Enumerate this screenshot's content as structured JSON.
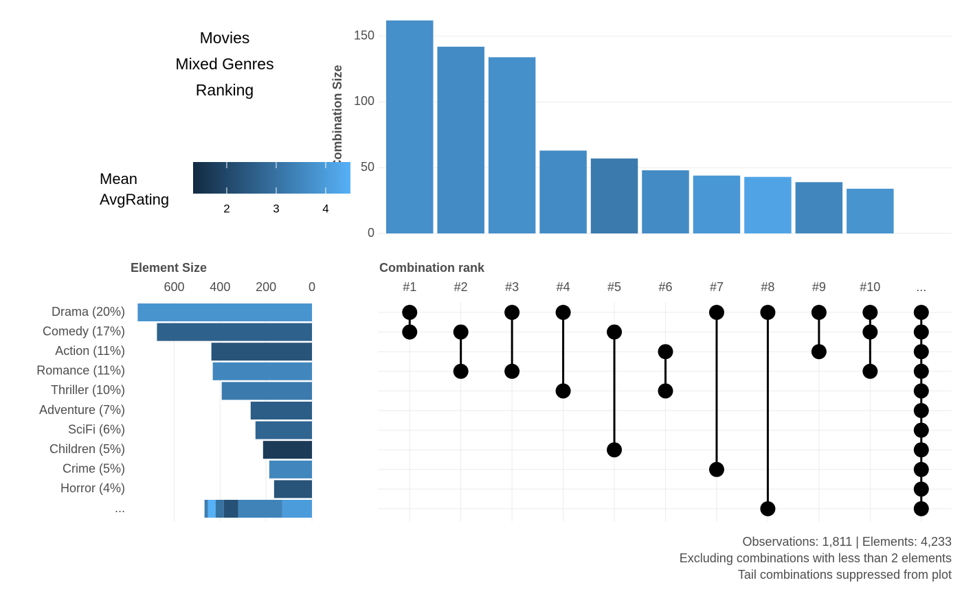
{
  "title_lines": [
    "Movies",
    "Mixed Genres",
    "Ranking"
  ],
  "legend": {
    "title_lines": [
      "Mean",
      "AvgRating"
    ],
    "lim": [
      1.32,
      4.5
    ],
    "ticks": [
      2,
      3,
      4
    ],
    "colors": [
      "#132B43",
      "#56B1F7"
    ]
  },
  "combination_chart": {
    "type": "bar",
    "y_label": "Combination Size",
    "ylim": [
      0,
      165
    ],
    "yticks": [
      0,
      50,
      100,
      150
    ],
    "values": [
      162,
      142,
      134,
      63,
      57,
      48,
      44,
      43,
      39,
      34
    ],
    "mean_rating": [
      3.7,
      3.6,
      3.7,
      3.6,
      3.2,
      3.6,
      3.9,
      4.2,
      3.5,
      3.8
    ]
  },
  "element_chart": {
    "type": "bar",
    "x_label": "Element Size",
    "xlim": [
      0,
      790
    ],
    "xticks": [
      600,
      400,
      200,
      0
    ],
    "categories": [
      "Drama (20%)",
      "Comedy (17%)",
      "Action (11%)",
      "Romance (11%)",
      "Thriller (10%)",
      "Adventure (7%)",
      "SciFi (6%)",
      "Children (5%)",
      "Crime (5%)",
      "Horror (4%)",
      "..."
    ],
    "values": [
      759,
      675,
      438,
      432,
      393,
      267,
      246,
      213,
      186,
      165,
      null
    ],
    "mean_rating": [
      3.8,
      2.6,
      2.3,
      3.5,
      3.2,
      2.5,
      2.7,
      1.7,
      3.5,
      2.3,
      null
    ],
    "tail_segments": {
      "values": [
        129,
        192,
        63,
        36,
        33,
        15
      ],
      "mean_rating": [
        4.0,
        3.4,
        2.2,
        3.0,
        4.5,
        3.3
      ]
    }
  },
  "matrix": {
    "x_label": "Combination rank",
    "columns": [
      "#1",
      "#2",
      "#3",
      "#4",
      "#5",
      "#6",
      "#7",
      "#8",
      "#9",
      "#10",
      "..."
    ],
    "sets": [
      [
        0,
        1
      ],
      [
        1,
        3
      ],
      [
        0,
        3
      ],
      [
        0,
        4
      ],
      [
        1,
        7
      ],
      [
        2,
        4
      ],
      [
        0,
        8
      ],
      [
        0,
        10
      ],
      [
        0,
        2
      ],
      [
        0,
        1,
        3
      ],
      [
        0,
        1,
        2,
        3,
        4,
        5,
        6,
        7,
        8,
        9,
        10
      ]
    ]
  },
  "caption": [
    "Observations: 1,811 | Elements: 4,233",
    "Excluding combinations with less than 2 elements",
    "Tail combinations suppressed from plot"
  ]
}
